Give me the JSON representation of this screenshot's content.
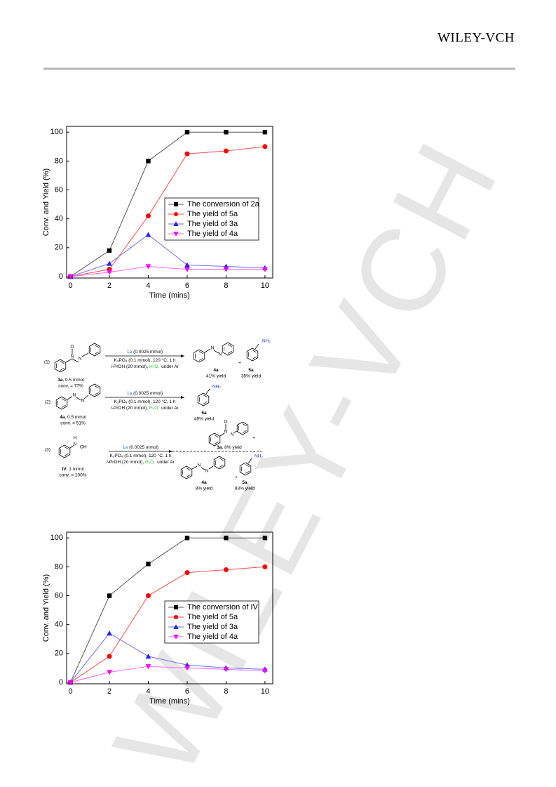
{
  "header": {
    "logo": "WILEY-VCH"
  },
  "watermark": "WILEY-VCH",
  "chart_data": [
    {
      "type": "line",
      "xlabel": "Time (mins)",
      "ylabel": "Conv. and Yield (%)",
      "x": [
        0,
        2,
        4,
        6,
        8,
        10
      ],
      "xlim": [
        -0.2,
        10.4
      ],
      "xticks": [
        0,
        2,
        4,
        6,
        8,
        10
      ],
      "ylim": [
        -1,
        104
      ],
      "yticks": [
        0,
        20,
        40,
        60,
        80,
        100
      ],
      "legend": "lower right",
      "series": [
        {
          "name": "The conversion of 2a",
          "color": "#555555",
          "marker_color": "#000000",
          "marker": "square",
          "values": [
            0,
            18,
            80,
            100,
            100,
            100
          ]
        },
        {
          "name": "The yield of 5a",
          "color": "#ff4d4d",
          "marker_color": "#ff0000",
          "marker": "circle",
          "values": [
            0,
            5,
            42,
            85,
            87,
            90
          ]
        },
        {
          "name": "The yield of 3a",
          "color": "#6b6bff",
          "marker_color": "#2020ff",
          "marker": "triangle-up",
          "values": [
            0,
            9,
            29,
            8,
            7,
            6
          ]
        },
        {
          "name": "The yield of 4a",
          "color": "#ff66ff",
          "marker_color": "#ff00ff",
          "marker": "triangle-down",
          "values": [
            0,
            3,
            7,
            5,
            5,
            5
          ]
        }
      ]
    },
    {
      "type": "line",
      "xlabel": "Time (mins)",
      "ylabel": "Conv. and Yield (%)",
      "x": [
        0,
        2,
        4,
        6,
        8,
        10
      ],
      "xlim": [
        -0.2,
        10.4
      ],
      "xticks": [
        0,
        2,
        4,
        6,
        8,
        10
      ],
      "ylim": [
        -1,
        104
      ],
      "yticks": [
        0,
        20,
        40,
        60,
        80,
        100
      ],
      "legend": "center right",
      "series": [
        {
          "name": "The conversion of IV",
          "color": "#555555",
          "marker_color": "#000000",
          "marker": "square",
          "values": [
            0,
            60,
            82,
            100,
            100,
            100
          ]
        },
        {
          "name": "The yield of 5a",
          "color": "#ff4d4d",
          "marker_color": "#ff0000",
          "marker": "circle",
          "values": [
            0,
            18,
            60,
            76,
            78,
            80
          ]
        },
        {
          "name": "The yield of 3a",
          "color": "#6b6bff",
          "marker_color": "#2020ff",
          "marker": "triangle-up",
          "values": [
            0,
            34,
            18,
            12,
            10,
            9
          ]
        },
        {
          "name": "The yield of 4a",
          "color": "#ff66ff",
          "marker_color": "#ff00ff",
          "marker": "triangle-down",
          "values": [
            0,
            7,
            11,
            10,
            9,
            8
          ]
        }
      ]
    }
  ],
  "scheme": {
    "plus": "+",
    "conditions": {
      "catalyst": "1a",
      "catalyst_amount": "(0.0025 mmol)",
      "base": "K₃PO₄ (0.1 mmol), 120 °C, 1 h",
      "solvent_prefix": "i",
      "solvent": "-PrOH (20 mmol),",
      "water": "H₂O,",
      "atmosphere": "under Ar"
    },
    "reactions": [
      {
        "number": "(1)",
        "reactant": {
          "label": "3a",
          "amount": ", 0.5 mmol",
          "conversion": "conv. = 77%"
        },
        "atoms": [
          "O",
          "N",
          "N",
          "NH₂"
        ],
        "products": [
          {
            "label": "4a",
            "yield": "41% yield"
          },
          {
            "label": "5a",
            "yield": "35% yield"
          }
        ]
      },
      {
        "number": "(2)",
        "reactant": {
          "label": "4a",
          "amount": ", 0.5 mmol",
          "conversion": "conv. = 51%"
        },
        "atoms": [
          "N",
          "N",
          "NH₂"
        ],
        "products": [
          {
            "label": "5a",
            "yield": "49% yield"
          }
        ]
      },
      {
        "number": "(3)",
        "reactant": {
          "label": "IV",
          "amount": ", 1 mmol",
          "conversion": "conv. = 100%"
        },
        "atoms": [
          "H",
          "N",
          "OH",
          "O",
          "N",
          "N",
          "N",
          "N",
          "NH₂"
        ],
        "products": [
          {
            "label": "3a",
            "yield": ", 8% yield"
          },
          {
            "label": "4a",
            "yield": "8% yield"
          },
          {
            "label": "5a",
            "yield": "83% yield"
          }
        ]
      }
    ]
  }
}
